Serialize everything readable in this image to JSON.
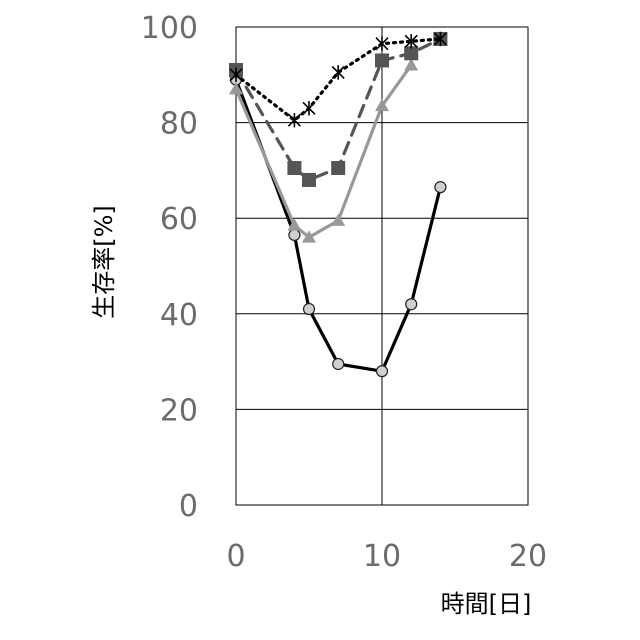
{
  "chart_data": {
    "type": "line",
    "xlabel": "時間[日]",
    "ylabel": "生存率[%]",
    "xlim": [
      0,
      20
    ],
    "ylim": [
      0,
      100
    ],
    "xticks": [
      "0",
      "10",
      "20"
    ],
    "yticks": [
      "0",
      "20",
      "40",
      "60",
      "80",
      "100"
    ],
    "grid": true,
    "series": [
      {
        "marker": "star",
        "line_style": "dotted",
        "color": "#000000",
        "x": [
          0,
          4,
          5,
          7,
          10,
          12,
          14
        ],
        "y": [
          90,
          80.5,
          83,
          90.5,
          96.5,
          97,
          97.5
        ]
      },
      {
        "marker": "square",
        "line_style": "dashed",
        "color": "#555555",
        "x": [
          0,
          4,
          5,
          7,
          10,
          12,
          14
        ],
        "y": [
          91,
          70.5,
          68,
          70.5,
          93,
          94.5,
          97.5
        ]
      },
      {
        "marker": "triangle",
        "line_style": "solid",
        "color": "#999999",
        "x": [
          0,
          4,
          5,
          7,
          10,
          12
        ],
        "y": [
          87,
          58.5,
          56,
          59.5,
          83.5,
          92
        ]
      },
      {
        "marker": "circle",
        "line_style": "solid",
        "color": "#000000",
        "marker_fill": "#d0d0d0",
        "x": [
          0,
          4,
          5,
          7,
          10,
          12,
          14
        ],
        "y": [
          89,
          56.5,
          41,
          29.5,
          28,
          42,
          66.5
        ]
      }
    ]
  }
}
